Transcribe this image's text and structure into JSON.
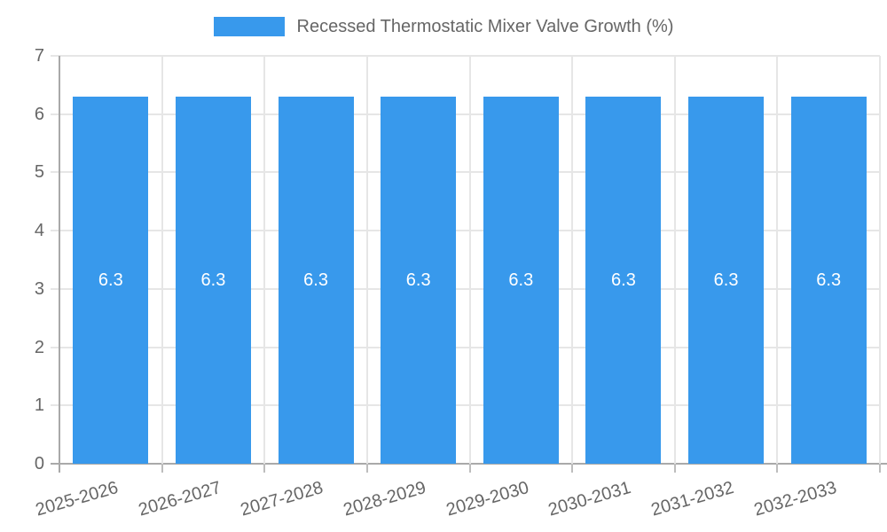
{
  "chart_data": {
    "type": "bar",
    "legend": "Recessed Thermostatic Mixer Valve Growth (%)",
    "legend_position": "top",
    "categories": [
      "2025-2026",
      "2026-2027",
      "2027-2028",
      "2028-2029",
      "2029-2030",
      "2030-2031",
      "2031-2032",
      "2032-2033"
    ],
    "values": [
      6.3,
      6.3,
      6.3,
      6.3,
      6.3,
      6.3,
      6.3,
      6.3
    ],
    "value_labels": [
      "6.3",
      "6.3",
      "6.3",
      "6.3",
      "6.3",
      "6.3",
      "6.3",
      "6.3"
    ],
    "title": "",
    "xlabel": "",
    "ylabel": "",
    "ylim": [
      0,
      7
    ],
    "yticks": [
      0,
      1,
      2,
      3,
      4,
      5,
      6,
      7
    ],
    "grid": true,
    "x_label_rotation_deg": -16,
    "colors": {
      "bar": "#3899EC",
      "value_label": "#ffffff",
      "axis_text": "#666666",
      "gridline": "#e6e6e6",
      "axis_line": "#a9a9a9",
      "tick_mark": "#bdbdbd",
      "background": "#ffffff"
    }
  }
}
